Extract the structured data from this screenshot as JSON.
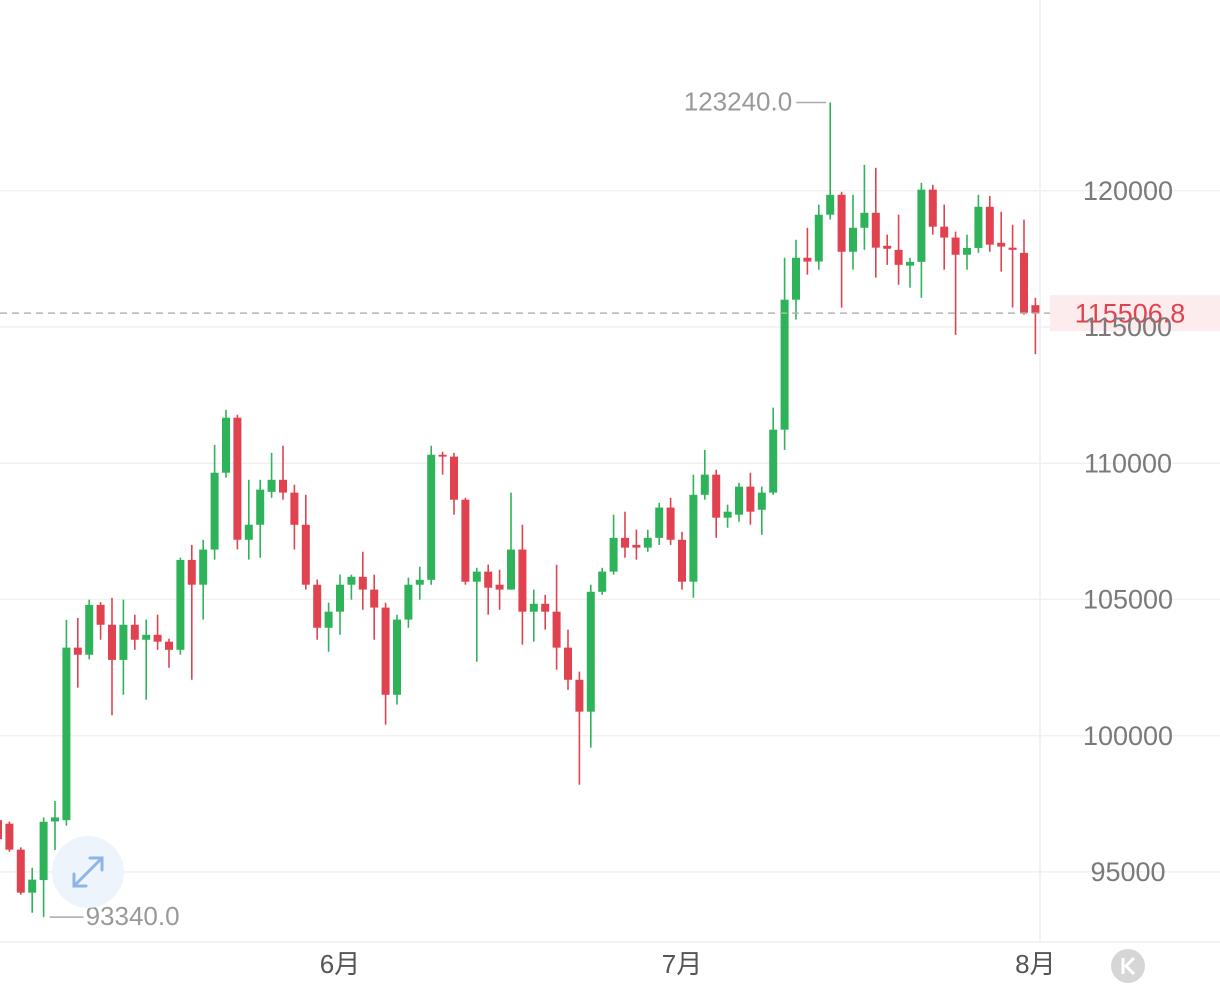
{
  "chart_data": {
    "type": "candlestick",
    "categories": [
      null,
      null,
      null,
      null,
      null,
      null,
      null,
      null,
      null,
      null,
      null,
      null,
      null,
      null,
      null,
      null,
      null,
      null,
      null,
      null,
      null,
      null,
      null,
      null,
      null,
      null,
      null,
      null,
      null,
      null,
      "6月",
      null,
      null,
      null,
      null,
      null,
      null,
      null,
      null,
      null,
      null,
      null,
      null,
      null,
      null,
      null,
      null,
      null,
      null,
      null,
      null,
      null,
      null,
      null,
      null,
      null,
      null,
      null,
      null,
      null,
      "7月",
      null,
      null,
      null,
      null,
      null,
      null,
      null,
      null,
      null,
      null,
      null,
      null,
      null,
      null,
      null,
      null,
      null,
      null,
      null,
      null,
      null,
      null,
      null,
      null,
      null,
      null,
      null,
      null,
      null,
      null,
      "8月"
    ],
    "open": [
      96900,
      96770,
      95816,
      94237,
      94700,
      96850,
      96900,
      103230,
      102970,
      104800,
      104070,
      102780,
      104070,
      103520,
      103700,
      103450,
      103150,
      106450,
      105540,
      106830,
      109650,
      111670,
      107190,
      107740,
      108950,
      109390,
      108920,
      107740,
      105540,
      103960,
      104550,
      105540,
      105830,
      105360,
      104700,
      101500,
      104260,
      105540,
      105720,
      110310,
      110240,
      108660,
      105650,
      106020,
      105540,
      105360,
      106830,
      104550,
      104840,
      104550,
      103230,
      102050,
      100880,
      105280,
      106020,
      107260,
      107000,
      106900,
      107260,
      108370,
      107190,
      105650,
      108840,
      109580,
      108000,
      108110,
      109140,
      108290,
      108920,
      111230,
      116000,
      117540,
      117400,
      119120,
      119850,
      117760,
      118640,
      119190,
      117980,
      117830,
      117250,
      117390,
      120040,
      118680,
      118280,
      117650,
      117900,
      119410,
      118090,
      117910,
      117720,
      115800
    ],
    "high": [
      97000,
      96850,
      95900,
      95150,
      97000,
      97600,
      104250,
      104320,
      104990,
      104900,
      105060,
      104990,
      104440,
      104260,
      104440,
      103560,
      106530,
      107000,
      107190,
      110670,
      111960,
      111780,
      109390,
      109390,
      110380,
      110640,
      109210,
      108840,
      105730,
      104880,
      105910,
      105910,
      106750,
      105910,
      104880,
      104440,
      105800,
      106200,
      110640,
      110420,
      110380,
      108730,
      106160,
      106280,
      106090,
      108920,
      107740,
      105360,
      105170,
      106270,
      103890,
      102350,
      105540,
      106160,
      108110,
      108220,
      107560,
      107560,
      108550,
      108730,
      107480,
      109580,
      110490,
      109760,
      108480,
      109280,
      109650,
      109140,
      112040,
      117540,
      118200,
      118640,
      119490,
      123240,
      119960,
      119850,
      120950,
      120840,
      118390,
      119120,
      117540,
      120290,
      120220,
      119490,
      118500,
      118390,
      119850,
      119810,
      119230,
      118750,
      118940,
      116070
    ],
    "low": [
      96100,
      95740,
      94163,
      93500,
      93340,
      95800,
      96700,
      101760,
      102800,
      103520,
      100750,
      101500,
      103150,
      101320,
      103150,
      102490,
      102970,
      102050,
      104260,
      106460,
      109470,
      106830,
      106460,
      106530,
      108730,
      108660,
      106830,
      105360,
      103520,
      103080,
      103700,
      104990,
      104620,
      103520,
      100400,
      101140,
      103960,
      104990,
      105540,
      109580,
      108110,
      105540,
      102710,
      104440,
      104620,
      105360,
      103340,
      103450,
      103890,
      102420,
      101680,
      98200,
      99560,
      105170,
      105910,
      106530,
      106460,
      106750,
      107000,
      107000,
      105360,
      105060,
      108660,
      107260,
      107630,
      107850,
      107740,
      107370,
      108840,
      110490,
      115270,
      116920,
      117100,
      118940,
      115710,
      117100,
      117830,
      116810,
      117280,
      116550,
      116440,
      116070,
      118390,
      117100,
      114710,
      117100,
      117720,
      117760,
      117030,
      115710,
      115450,
      114000
    ],
    "close": [
      96200,
      95816,
      94237,
      94715,
      96840,
      97000,
      103230,
      102970,
      104800,
      104070,
      102780,
      104070,
      103520,
      103700,
      103450,
      103150,
      106450,
      105540,
      106830,
      109650,
      111670,
      107190,
      107740,
      109030,
      109390,
      108920,
      107740,
      105540,
      103960,
      104550,
      105540,
      105830,
      105360,
      104700,
      101500,
      104260,
      105540,
      105720,
      110310,
      110240,
      108660,
      105650,
      106020,
      105430,
      105360,
      106830,
      104550,
      104840,
      104550,
      103230,
      102050,
      100880,
      105280,
      106020,
      107260,
      106900,
      106900,
      107260,
      108370,
      107190,
      105650,
      108840,
      109580,
      108000,
      108220,
      109140,
      108220,
      108920,
      111230,
      116000,
      117540,
      117400,
      119120,
      119850,
      117760,
      118640,
      119190,
      117910,
      117870,
      117280,
      117390,
      120040,
      118680,
      118280,
      117650,
      117900,
      119410,
      118020,
      117950,
      117830,
      115520,
      115506.8
    ],
    "up_color": "#2fb35a",
    "down_color": "#e0434f",
    "ylim": [
      92500,
      127000
    ],
    "yticks": [
      95000,
      100000,
      105000,
      110000,
      115000,
      120000
    ],
    "grid": true,
    "high_label": "123240.0",
    "low_label": "93340.0",
    "last_price": 115506.8
  }
}
